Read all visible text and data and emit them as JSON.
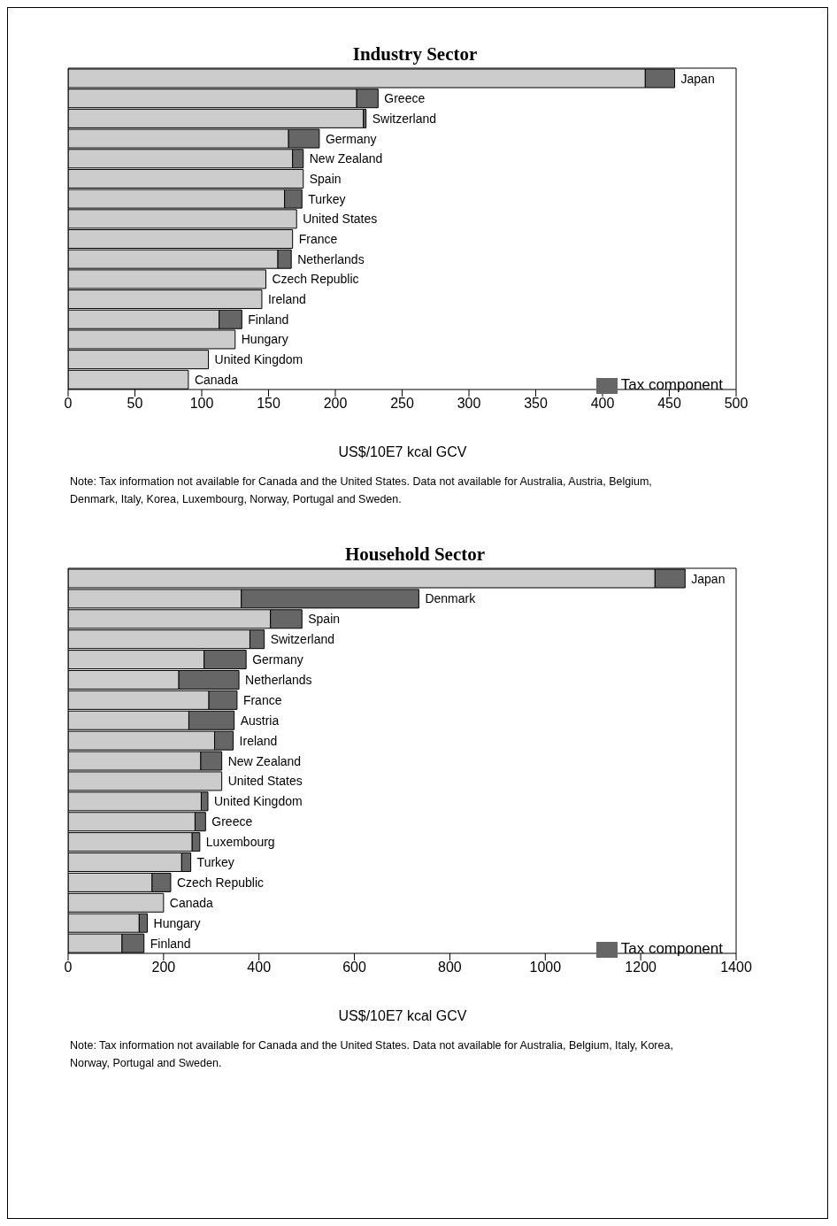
{
  "chart_data": [
    {
      "type": "bar",
      "orientation": "horizontal",
      "stacked": true,
      "title": "Industry Sector",
      "xlabel": "US$/10E7 kcal GCV",
      "categories": [
        "Japan",
        "Greece",
        "Switzerland",
        "Germany",
        "New Zealand",
        "Spain",
        "Turkey",
        "United States",
        "France",
        "Netherlands",
        "Czech Republic",
        "Ireland",
        "Finland",
        "Hungary",
        "United Kingdom",
        "Canada"
      ],
      "series": [
        {
          "color": "#cccccc",
          "values": [
            432,
            216,
            221,
            165,
            168,
            176,
            162,
            171,
            168,
            157,
            148,
            145,
            113,
            125,
            105,
            90
          ]
        },
        {
          "name": "Tax component",
          "color": "#666666",
          "values": [
            22,
            16,
            2,
            23,
            8,
            null,
            13,
            null,
            null,
            10,
            null,
            null,
            17,
            null,
            null,
            null
          ]
        }
      ],
      "xlim": [
        0,
        500
      ],
      "xticks": [
        0,
        50,
        100,
        150,
        200,
        250,
        300,
        350,
        400,
        450,
        500
      ],
      "legend": "bottom right",
      "grid": false,
      "annotations": [
        "Note:  Tax information not available for Canada and the United States.  Data not available for Australia, Austria, Belgium, Denmark, Italy, Korea, Luxembourg, Norway, Portugal and Sweden."
      ]
    },
    {
      "type": "bar",
      "orientation": "horizontal",
      "stacked": true,
      "title": "Household Sector",
      "xlabel": "US$/10E7 kcal GCV",
      "categories": [
        "Japan",
        "Denmark",
        "Spain",
        "Switzerland",
        "Germany",
        "Netherlands",
        "France",
        "Austria",
        "Ireland",
        "New Zealand",
        "United States",
        "United Kingdom",
        "Greece",
        "Luxembourg",
        "Turkey",
        "Czech Republic",
        "Canada",
        "Hungary",
        "Finland"
      ],
      "series": [
        {
          "color": "#cccccc",
          "values": [
            1230,
            363,
            424,
            381,
            285,
            232,
            295,
            253,
            307,
            278,
            322,
            279,
            266,
            260,
            238,
            176,
            200,
            149,
            113
          ]
        },
        {
          "name": "Tax component",
          "color": "#666666",
          "values": [
            63,
            372,
            66,
            30,
            88,
            126,
            59,
            95,
            39,
            44,
            null,
            14,
            22,
            16,
            19,
            39,
            null,
            17,
            46
          ]
        }
      ],
      "xlim": [
        0,
        1400
      ],
      "xticks": [
        0,
        200,
        400,
        600,
        800,
        1000,
        1200,
        1400
      ],
      "legend": "bottom right",
      "grid": false,
      "annotations": [
        "Note:  Tax information not available for Canada and the United States.  Data not available for Australia, Belgium, Italy, Korea, Norway, Portugal and Sweden."
      ]
    }
  ]
}
